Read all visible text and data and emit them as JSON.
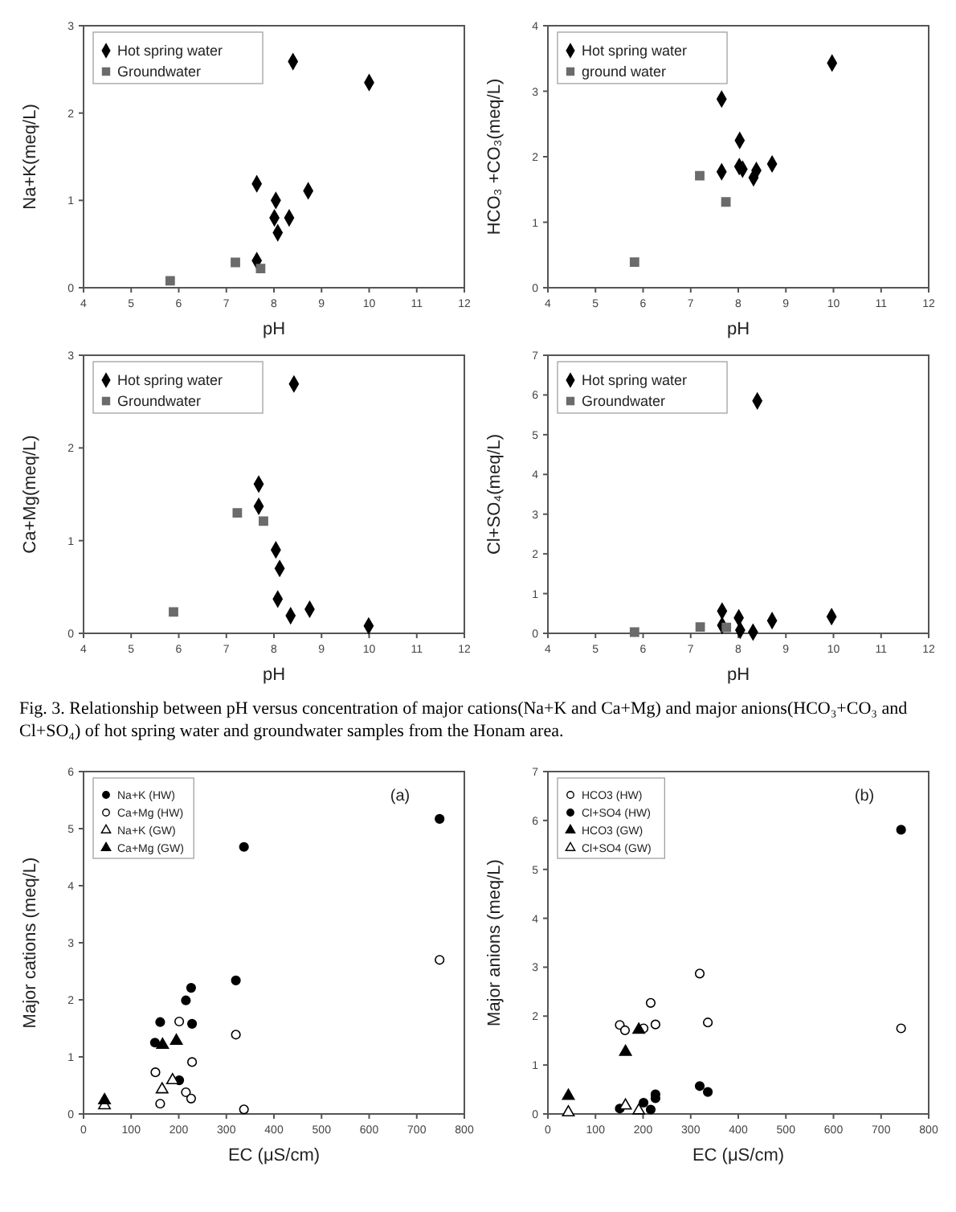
{
  "chart_data": [
    {
      "type": "scatter",
      "xlabel": "pH",
      "ylabel": "Na+K(meq/L)",
      "xlim": [
        4,
        12
      ],
      "xticks": [
        4,
        5,
        6,
        7,
        8,
        9,
        10,
        11,
        12
      ],
      "ylim": [
        0,
        3
      ],
      "yticks": [
        0,
        1,
        2,
        3
      ],
      "legend": "top left",
      "series": [
        {
          "name": "Hot spring water",
          "color": "#000000",
          "marker": "diamond",
          "x": [
            8.4,
            10.0,
            7.64,
            8.72,
            8.04,
            8.01,
            8.32,
            8.08,
            7.64
          ],
          "values": [
            2.59,
            2.35,
            1.19,
            1.11,
            1.0,
            0.8,
            0.8,
            0.63,
            0.31
          ]
        },
        {
          "name": "Groundwater",
          "color": "#6b6b6b",
          "marker": "square",
          "x": [
            5.82,
            7.19,
            7.72
          ],
          "values": [
            0.08,
            0.29,
            0.22
          ]
        }
      ]
    },
    {
      "type": "scatter",
      "xlabel": "pH",
      "ylabel": "HCO₃ +CO₃(meq/L)",
      "xlim": [
        4,
        12
      ],
      "xticks": [
        4,
        5,
        6,
        7,
        8,
        9,
        10,
        11,
        12
      ],
      "ylim": [
        0,
        4
      ],
      "yticks": [
        0,
        1,
        2,
        3,
        4
      ],
      "legend": "top left",
      "series": [
        {
          "name": "Hot spring water",
          "color": "#000000",
          "marker": "diamond",
          "x": [
            9.97,
            7.65,
            8.03,
            7.65,
            8.02,
            8.09,
            8.38,
            8.32,
            8.71
          ],
          "values": [
            3.43,
            2.88,
            2.25,
            1.77,
            1.85,
            1.81,
            1.79,
            1.68,
            1.89
          ]
        },
        {
          "name": "ground water",
          "color": "#6b6b6b",
          "marker": "square",
          "x": [
            5.82,
            7.19,
            7.74
          ],
          "values": [
            0.39,
            1.71,
            1.31
          ]
        }
      ]
    },
    {
      "type": "scatter",
      "xlabel": "pH",
      "ylabel": "Ca+Mg(meq/L)",
      "xlim": [
        4,
        12
      ],
      "xticks": [
        4,
        5,
        6,
        7,
        8,
        9,
        10,
        11,
        12
      ],
      "ylim": [
        0,
        3
      ],
      "yticks": [
        0,
        1,
        2,
        3
      ],
      "legend": "top left",
      "series": [
        {
          "name": "Hot spring water",
          "color": "#000000",
          "marker": "diamond",
          "x": [
            8.42,
            7.68,
            7.68,
            8.04,
            8.12,
            8.08,
            8.35,
            8.75,
            9.99
          ],
          "values": [
            2.69,
            1.61,
            1.37,
            0.9,
            0.7,
            0.37,
            0.19,
            0.26,
            0.08
          ]
        },
        {
          "name": "Groundwater",
          "color": "#6b6b6b",
          "marker": "square",
          "x": [
            5.89,
            7.23,
            7.78
          ],
          "values": [
            0.23,
            1.3,
            1.21
          ]
        }
      ]
    },
    {
      "type": "scatter",
      "xlabel": "pH",
      "ylabel": "Cl+SO₄(meq/L)",
      "xlim": [
        4,
        12
      ],
      "xticks": [
        4,
        5,
        6,
        7,
        8,
        9,
        10,
        11,
        12
      ],
      "ylim": [
        0,
        7
      ],
      "yticks": [
        0,
        1,
        2,
        3,
        4,
        5,
        6,
        7
      ],
      "legend": "top left",
      "annotations": [
        "Fig. 3. Relationship between pH versus concentration of major cations(Na+K and Ca+Mg) and major anions(HCO₃+CO₃ and Cl+SO₄) of hot spring water and groundwater samples from the Honam area."
      ],
      "series": [
        {
          "name": "Hot spring water",
          "color": "#000000",
          "marker": "diamond",
          "x": [
            8.4,
            7.66,
            8.01,
            8.71,
            9.96,
            7.66,
            8.04,
            8.31
          ],
          "values": [
            5.85,
            0.56,
            0.39,
            0.32,
            0.42,
            0.2,
            0.08,
            0.03
          ]
        },
        {
          "name": "Groundwater",
          "color": "#6b6b6b",
          "marker": "square",
          "x": [
            5.82,
            7.2,
            7.75
          ],
          "values": [
            0.03,
            0.16,
            0.15
          ]
        }
      ]
    },
    {
      "type": "scatter",
      "xlabel": "EC (μS/cm)",
      "ylabel": "Major cations (meq/L)",
      "xlim": [
        0,
        800
      ],
      "xticks": [
        0,
        100,
        200,
        300,
        400,
        500,
        600,
        700,
        800
      ],
      "ylim": [
        0,
        6
      ],
      "yticks": [
        0,
        1,
        2,
        3,
        4,
        5,
        6
      ],
      "legend": "top left",
      "annotations": [
        "(a)"
      ],
      "series": [
        {
          "name": "Na+K (HW)",
          "color": "#000000",
          "marker": "circle",
          "x": [
            748,
            337,
            320,
            226,
            215,
            228,
            161,
            150,
            201
          ],
          "values": [
            5.17,
            4.68,
            2.34,
            2.21,
            1.99,
            1.58,
            1.61,
            1.25,
            0.59
          ]
        },
        {
          "name": "Ca+Mg (HW)",
          "color": "#ffffff",
          "marker": "circle",
          "x": [
            748,
            201,
            320,
            228,
            151,
            215,
            226,
            161,
            337
          ],
          "values": [
            2.7,
            1.62,
            1.39,
            0.91,
            0.73,
            0.38,
            0.27,
            0.18,
            0.08
          ]
        },
        {
          "name": "Na+K (GW)",
          "color": "#ffffff",
          "marker": "triangle",
          "x": [
            44,
            165,
            187
          ],
          "values": [
            0.15,
            0.43,
            0.59
          ]
        },
        {
          "name": "Ca+Mg (GW)",
          "color": "#000000",
          "marker": "triangle",
          "x": [
            44,
            166,
            195
          ],
          "values": [
            0.24,
            1.21,
            1.28
          ]
        }
      ]
    },
    {
      "type": "scatter",
      "xlabel": "EC (μS/cm)",
      "ylabel": "Major anions (meq/L)",
      "xlim": [
        0,
        800
      ],
      "xticks": [
        0,
        100,
        200,
        300,
        400,
        500,
        600,
        700,
        800
      ],
      "ylim": [
        0,
        7
      ],
      "yticks": [
        0,
        1,
        2,
        3,
        4,
        5,
        6,
        7
      ],
      "legend": "top left",
      "annotations": [
        "(b)"
      ],
      "series": [
        {
          "name": "HCO3 (HW)",
          "color": "#ffffff",
          "marker": "circle",
          "x": [
            742,
            319,
            336,
            216,
            226,
            151,
            162,
            201
          ],
          "values": [
            1.75,
            2.87,
            1.87,
            2.27,
            1.83,
            1.82,
            1.71,
            1.75
          ]
        },
        {
          "name": "Cl+SO4 (HW)",
          "color": "#000000",
          "marker": "circle",
          "x": [
            742,
            319,
            336,
            226,
            226,
            201,
            151,
            216
          ],
          "values": [
            5.81,
            0.57,
            0.45,
            0.4,
            0.32,
            0.23,
            0.11,
            0.09
          ]
        },
        {
          "name": "HCO3 (GW)",
          "color": "#000000",
          "marker": "triangle",
          "x": [
            43,
            163,
            191
          ],
          "values": [
            0.37,
            1.27,
            1.72
          ]
        },
        {
          "name": "Cl+SO4 (GW)",
          "color": "#ffffff",
          "marker": "triangle",
          "x": [
            43,
            163,
            191
          ],
          "values": [
            0.03,
            0.17,
            0.07
          ]
        }
      ]
    }
  ]
}
